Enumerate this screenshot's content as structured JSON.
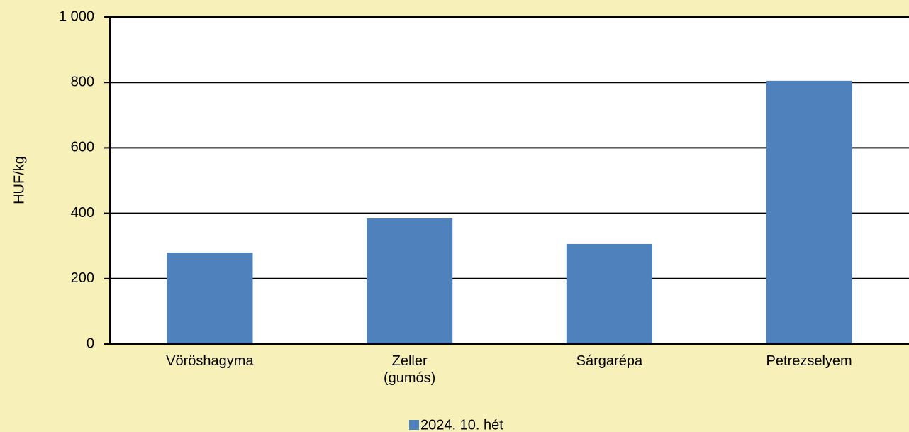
{
  "chart_data": {
    "type": "bar",
    "y_label": "HUF/kg",
    "categories": [
      "Vöröshagyma",
      "Zeller\n(gumós)",
      "Sárgarépa",
      "Petrezselyem"
    ],
    "series": [
      {
        "name": "2024. 10. hét",
        "color": "#4f81bd",
        "values": [
          280,
          384,
          306,
          805
        ]
      }
    ],
    "ylim": [
      0,
      1000
    ],
    "yticks": [
      0,
      200,
      400,
      600,
      800,
      {
        "value": 1000,
        "label": "1 000"
      }
    ],
    "grid": true,
    "legend": "bottom"
  }
}
